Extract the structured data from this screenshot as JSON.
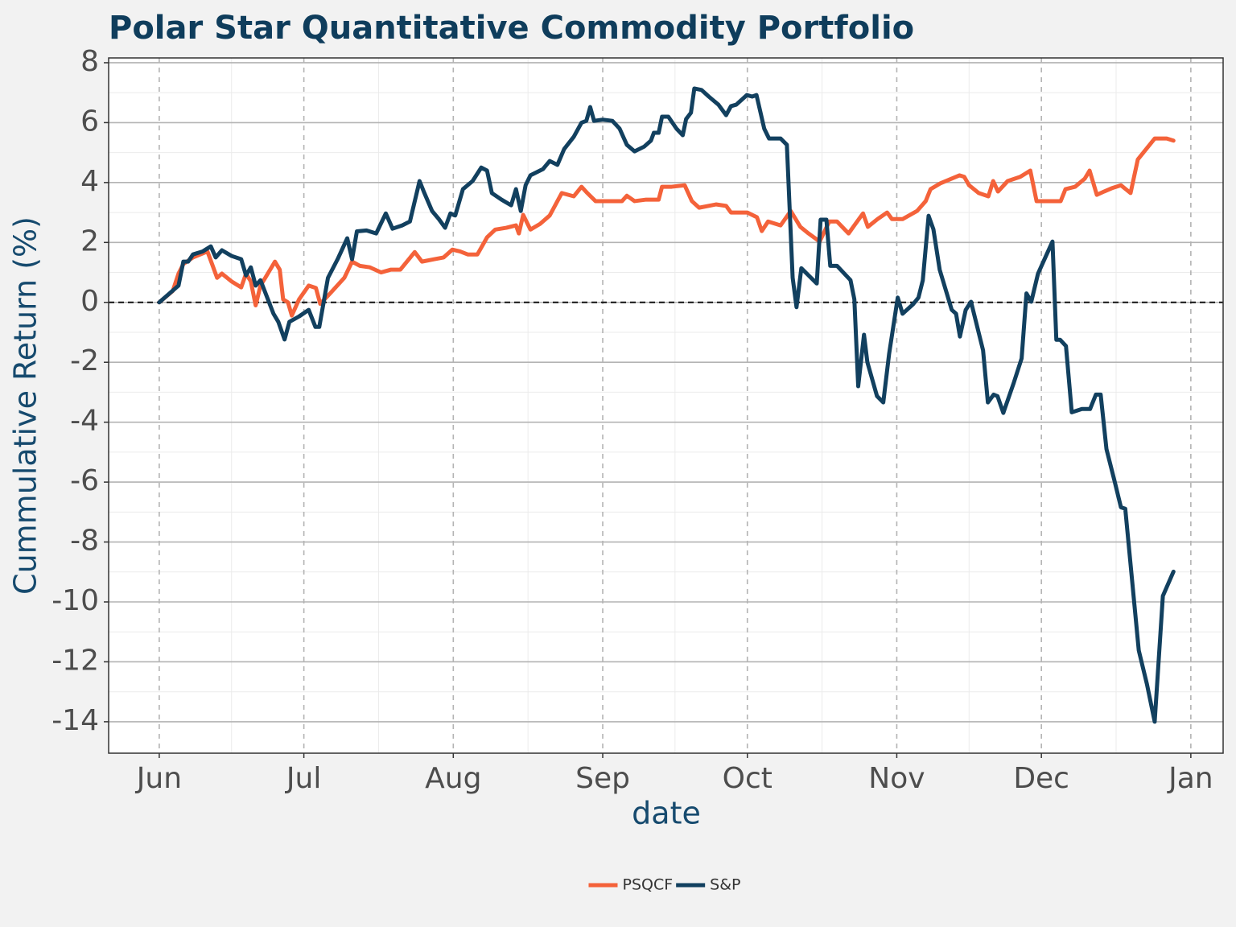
{
  "chart_data": {
    "type": "line",
    "title": "Polar Star Quantitative Commodity Portfolio",
    "xlabel": "date",
    "ylabel": "Cummulative Return (%)",
    "xlim": [
      -10.5,
      220.7
    ],
    "xticks": [
      {
        "value": 0,
        "label": "Jun"
      },
      {
        "value": 30,
        "label": "Jul"
      },
      {
        "value": 61,
        "label": "Aug"
      },
      {
        "value": 92,
        "label": "Sep"
      },
      {
        "value": 122,
        "label": "Oct"
      },
      {
        "value": 153,
        "label": "Nov"
      },
      {
        "value": 183,
        "label": "Dec"
      },
      {
        "value": 214,
        "label": "Jan"
      }
    ],
    "ylim": [
      -15.05,
      8.16
    ],
    "yticks": [
      -14,
      -12,
      -10,
      -8,
      -6,
      -4,
      -2,
      0,
      2,
      4,
      6,
      8
    ],
    "grid": true,
    "hline": 0,
    "legend": "bottom",
    "series": [
      {
        "name": "PSQCF",
        "color": "#f4623a",
        "x": [
          0,
          2.8,
          4,
          5,
          7,
          10,
          12,
          13,
          15,
          17,
          18,
          19,
          20,
          21,
          22,
          24,
          25,
          25.7,
          26.7,
          27.5,
          29,
          31,
          32.5,
          33.4,
          35.4,
          38.4,
          40,
          41.6,
          43.7,
          46,
          48,
          50,
          53,
          54.5,
          57,
          59,
          60.8,
          62.4,
          64,
          66,
          68,
          69.7,
          72,
          74,
          74.6,
          75.5,
          77,
          79,
          81,
          83.5,
          86,
          87.6,
          88.8,
          90.5,
          93.8,
          96,
          97,
          98.6,
          101,
          103.6,
          104.3,
          106.3,
          109,
          110.5,
          112,
          115.5,
          117.6,
          118.6,
          122,
          124,
          125,
          126.3,
          128.9,
          131,
          133,
          134.7,
          137,
          139,
          140.6,
          143,
          144.2,
          146,
          147,
          149,
          151,
          152,
          154.2,
          157.2,
          159,
          160,
          162,
          166,
          167,
          168,
          170,
          172,
          173,
          174,
          176,
          178.6,
          180.7,
          182,
          185,
          187,
          188,
          190,
          192,
          193,
          194.5,
          196,
          197.6,
          199.5,
          201.5,
          203,
          206.5,
          209,
          210.4
        ],
        "values": [
          0,
          0.38,
          0.96,
          1.28,
          1.5,
          1.7,
          0.82,
          0.96,
          0.7,
          0.5,
          0.96,
          0.7,
          -0.1,
          0.56,
          0.82,
          1.36,
          1.09,
          0.1,
          0,
          -0.44,
          0.1,
          0.56,
          0.48,
          -0.05,
          0.29,
          0.82,
          1.36,
          1.22,
          1.17,
          1.0,
          1.09,
          1.09,
          1.68,
          1.36,
          1.44,
          1.5,
          1.76,
          1.7,
          1.6,
          1.6,
          2.17,
          2.43,
          2.49,
          2.57,
          2.3,
          2.92,
          2.43,
          2.62,
          2.9,
          3.65,
          3.54,
          3.86,
          3.65,
          3.38,
          3.38,
          3.38,
          3.56,
          3.38,
          3.43,
          3.43,
          3.86,
          3.86,
          3.91,
          3.38,
          3.16,
          3.27,
          3.22,
          3.0,
          3.0,
          2.84,
          2.38,
          2.7,
          2.57,
          3.05,
          2.52,
          2.3,
          2.03,
          2.7,
          2.7,
          2.3,
          2.57,
          2.97,
          2.52,
          2.78,
          3.0,
          2.78,
          2.78,
          3.05,
          3.38,
          3.78,
          3.97,
          4.24,
          4.19,
          3.91,
          3.65,
          3.54,
          4.05,
          3.7,
          4.05,
          4.19,
          4.4,
          3.38,
          3.38,
          3.38,
          3.78,
          3.86,
          4.13,
          4.4,
          3.59,
          3.7,
          3.81,
          3.91,
          3.65,
          4.77,
          5.47,
          5.47,
          5.4
        ]
      },
      {
        "name": "S&P",
        "color": "#12405f",
        "x": [
          0,
          4,
          5,
          6,
          7,
          9,
          10.7,
          11.7,
          13,
          15,
          17,
          18,
          19,
          20,
          21,
          23.7,
          24.7,
          26,
          27,
          29,
          31,
          32.4,
          33.2,
          35,
          37,
          39,
          40,
          41,
          43,
          45,
          47,
          48.4,
          50.4,
          52,
          54,
          55,
          56.6,
          58,
          59.3,
          60.4,
          61.4,
          63,
          65,
          66.8,
          68,
          69,
          71,
          73,
          74,
          75,
          76,
          77,
          79.6,
          81,
          82.6,
          84,
          86,
          87.6,
          88.6,
          89.4,
          90.2,
          92,
          94,
          95.5,
          97,
          98.6,
          100.6,
          102,
          102.6,
          103.6,
          104.3,
          105.6,
          107.3,
          108.6,
          109.3,
          110.3,
          111,
          112.5,
          114,
          116,
          117.6,
          118.6,
          119.7,
          121.9,
          123,
          123.9,
          125.5,
          126.5,
          128.9,
          130.2,
          131.4,
          132.2,
          133.2,
          134.7,
          136.4,
          137.2,
          138.4,
          139.2,
          140.6,
          143.4,
          144.2,
          145,
          146.2,
          146.9,
          148.9,
          150.2,
          151.4,
          153.2,
          154.2,
          156.4,
          157.5,
          158.4,
          159.6,
          160.6,
          161.9,
          164.4,
          165.3,
          166.1,
          167.3,
          168.4,
          170.9,
          171.9,
          173.1,
          173.9,
          175.1,
          177.3,
          178.9,
          179.9,
          180.9,
          182.3,
          185.3,
          186.1,
          186.9,
          188.1,
          189.3,
          191.4,
          193.1,
          194.3,
          195.3,
          196.5,
          198.2,
          199.5,
          200.4,
          203.2,
          204.9,
          206.5,
          208.2,
          210.4
        ],
        "values": [
          0,
          0.56,
          1.36,
          1.36,
          1.6,
          1.7,
          1.87,
          1.5,
          1.74,
          1.55,
          1.44,
          0.9,
          1.17,
          0.56,
          0.74,
          -0.38,
          -0.65,
          -1.24,
          -0.65,
          -0.47,
          -0.25,
          -0.82,
          -0.82,
          0.82,
          1.44,
          2.14,
          1.44,
          2.37,
          2.4,
          2.3,
          2.97,
          2.46,
          2.57,
          2.7,
          4.05,
          3.65,
          3.05,
          2.78,
          2.49,
          2.97,
          2.9,
          3.78,
          4.05,
          4.5,
          4.4,
          3.65,
          3.43,
          3.24,
          3.78,
          3.05,
          3.91,
          4.24,
          4.45,
          4.72,
          4.59,
          5.12,
          5.53,
          6.0,
          6.06,
          6.52,
          6.06,
          6.1,
          6.06,
          5.8,
          5.26,
          5.04,
          5.2,
          5.4,
          5.66,
          5.66,
          6.2,
          6.2,
          5.8,
          5.58,
          6.12,
          6.33,
          7.14,
          7.09,
          6.87,
          6.6,
          6.25,
          6.55,
          6.6,
          6.92,
          6.87,
          6.92,
          5.8,
          5.47,
          5.47,
          5.26,
          0.82,
          -0.16,
          1.14,
          0.9,
          0.63,
          2.76,
          2.76,
          1.22,
          1.22,
          0.74,
          0.1,
          -2.8,
          -1.08,
          -2.0,
          -3.13,
          -3.34,
          -1.73,
          0.16,
          -0.38,
          -0.06,
          0.16,
          0.74,
          2.89,
          2.44,
          1.09,
          -0.25,
          -0.38,
          -1.14,
          -0.25,
          0.02,
          -1.6,
          -3.34,
          -3.08,
          -3.13,
          -3.69,
          -2.67,
          -1.87,
          0.3,
          0.02,
          0.96,
          2.03,
          -1.25,
          -1.25,
          -1.46,
          -3.67,
          -3.56,
          -3.56,
          -3.08,
          -3.08,
          -4.9,
          -5.98,
          -6.84,
          -6.89,
          -11.62,
          -12.75,
          -14.0,
          -9.8,
          -8.99
        ]
      }
    ]
  }
}
